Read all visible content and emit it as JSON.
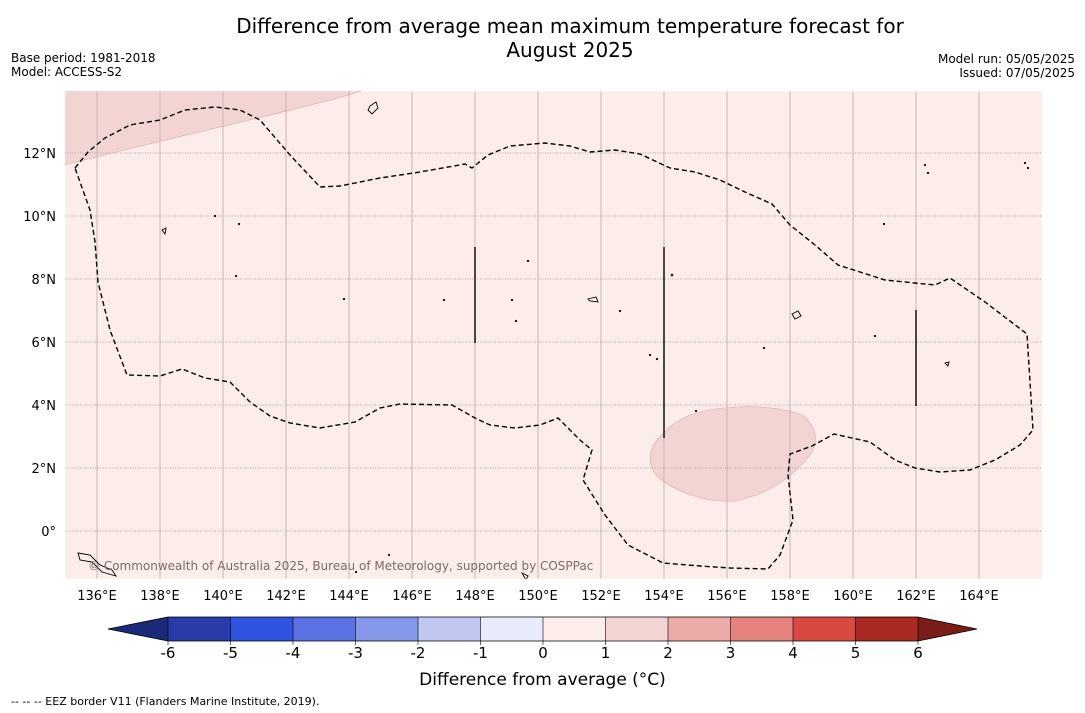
{
  "header": {
    "title_line1": "Difference from average mean maximum temperature forecast for",
    "title_line2": "August 2025",
    "base_period": "Base period: 1981-2018",
    "model": "Model: ACCESS-S2",
    "model_run": "Model run: 05/05/2025",
    "issued": "Issued: 07/05/2025"
  },
  "map": {
    "copyright": "© Commonwealth of Australia 2025, Bureau of Meteorology, supported by COSPPac",
    "lon_labels": [
      "136°E",
      "138°E",
      "140°E",
      "142°E",
      "144°E",
      "146°E",
      "148°E",
      "150°E",
      "152°E",
      "154°E",
      "156°E",
      "158°E",
      "160°E",
      "162°E",
      "164°E"
    ],
    "lat_labels": [
      "12°N",
      "10°N",
      "8°N",
      "6°N",
      "4°N",
      "2°N",
      "0°"
    ],
    "background_category": "0 to 1",
    "warm_category": "1 to 2"
  },
  "colorbar": {
    "title": "Difference from average (°C)",
    "ticks": [
      "-6",
      "-5",
      "-4",
      "-3",
      "-2",
      "-1",
      "0",
      "1",
      "2",
      "3",
      "4",
      "5",
      "6"
    ],
    "colors": [
      "#283ba8",
      "#2f52e0",
      "#5a72e4",
      "#8497e8",
      "#c0c8f2",
      "#e8ebfb",
      "#fcecea",
      "#f2d5d3",
      "#ebaba7",
      "#e5827d",
      "#d94841",
      "#a82a22"
    ],
    "under_color": "#1a2a78",
    "over_color": "#7a1c18"
  },
  "footnote": "--  --  -- EEZ border V11 (Flanders Marine Institute, 2019).",
  "colors": {
    "map_fill": "#fcecea",
    "warm_fill": "#f2d5d3"
  }
}
